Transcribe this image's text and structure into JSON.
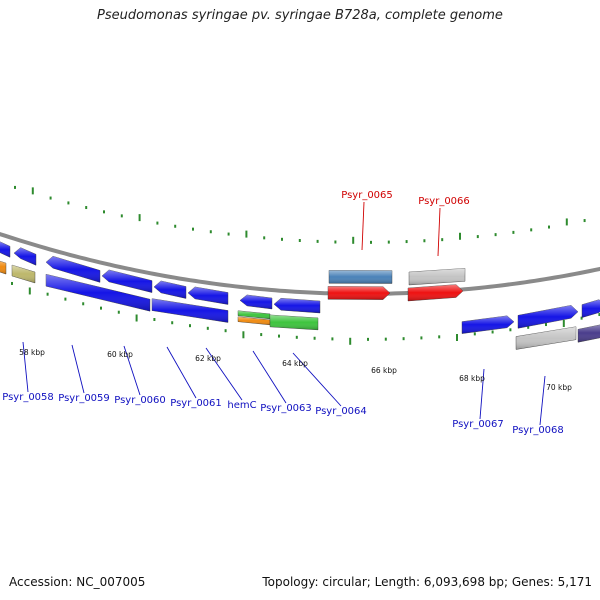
{
  "title": "Pseudomonas syringae pv. syringae B728a, complete genome",
  "footer": {
    "accession": "Accession: NC_007005",
    "summary": "Topology: circular; Length: 6,093,698 bp; Genes: 5,171"
  },
  "colors": {
    "backbone": "#8a8a8a",
    "tick": "#2e8b2e",
    "gene_blue": "#1515e6",
    "gene_red": "#ee1111",
    "gene_steelblue": "#4a82b8",
    "gene_gray": "#c4c4c4",
    "gene_olive": "#bdb76b",
    "gene_orange": "#f08a10",
    "gene_green": "#3ec43e",
    "gene_purple": "#4a3d8c",
    "label_blue": "#1010c0",
    "label_red": "#d00000"
  },
  "axis": {
    "tick_labels": [
      "58 kbp",
      "60 kbp",
      "62 kbp",
      "64 kbp",
      "66 kbp",
      "68 kbp",
      "70 kbp"
    ]
  },
  "gene_labels": [
    {
      "text": "Psyr_0058",
      "color": "blue"
    },
    {
      "text": "Psyr_0059",
      "color": "blue"
    },
    {
      "text": "Psyr_0060",
      "color": "blue"
    },
    {
      "text": "Psyr_0061",
      "color": "blue"
    },
    {
      "text": "hemC",
      "color": "blue"
    },
    {
      "text": "Psyr_0063",
      "color": "blue"
    },
    {
      "text": "Psyr_0064",
      "color": "blue"
    },
    {
      "text": "Psyr_0065",
      "color": "red"
    },
    {
      "text": "Psyr_0066",
      "color": "red"
    },
    {
      "text": "Psyr_0067",
      "color": "blue"
    },
    {
      "text": "Psyr_0068",
      "color": "blue"
    }
  ]
}
